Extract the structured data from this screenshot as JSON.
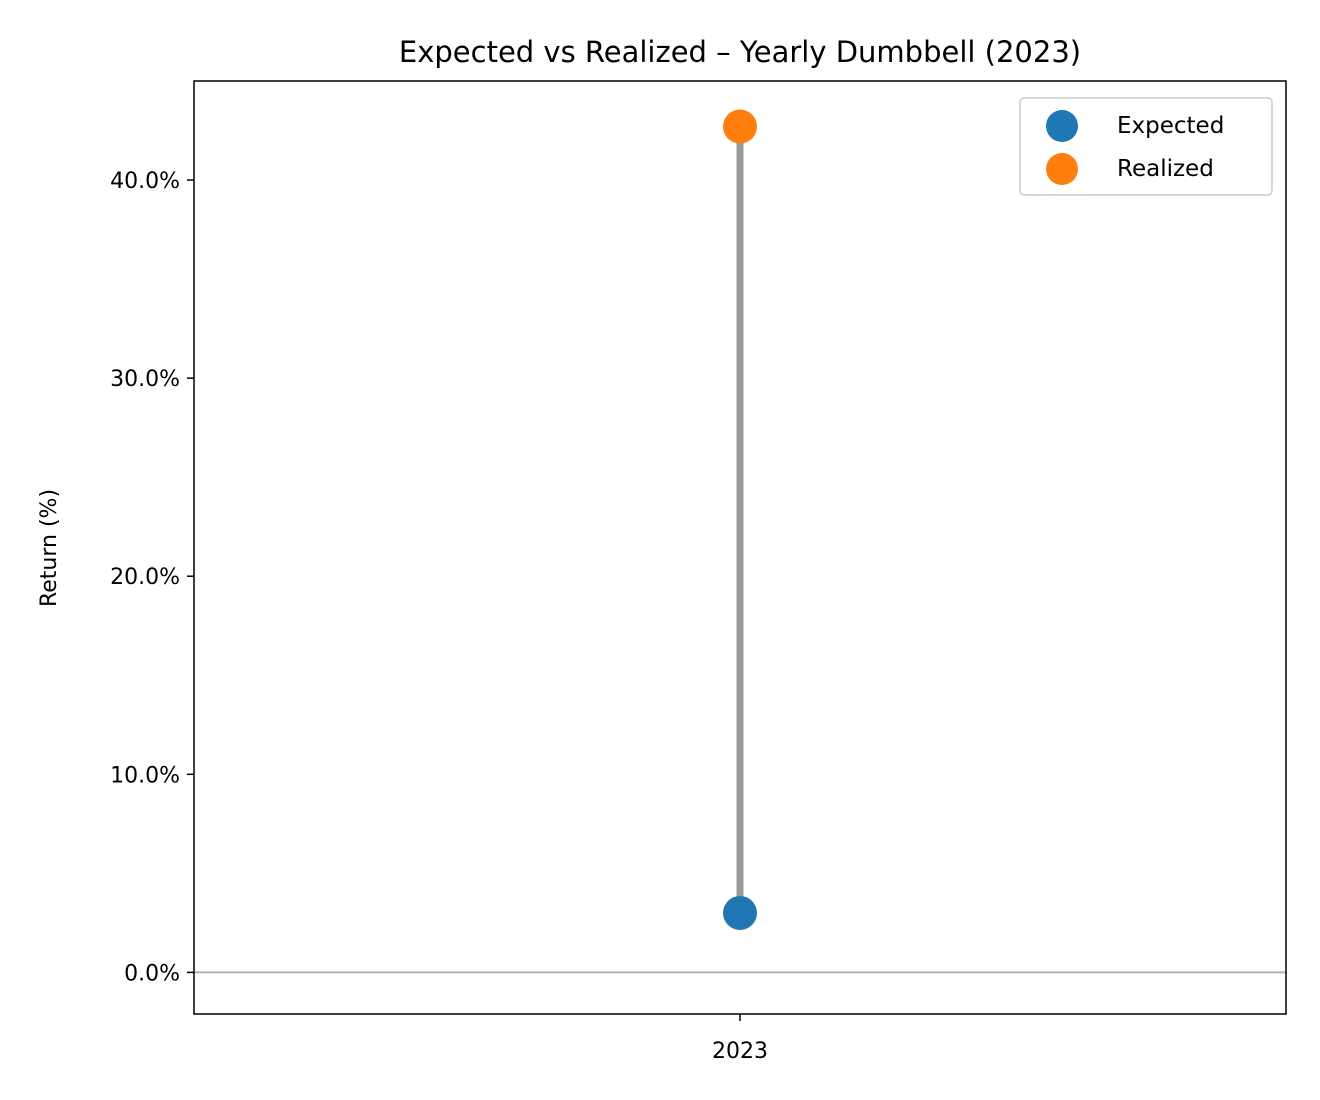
{
  "chart_data": {
    "type": "dumbbell",
    "title": "Expected vs Realized – Yearly Dumbbell (2023)",
    "xlabel": "",
    "ylabel": "Return (%)",
    "categories": [
      "2023"
    ],
    "series": [
      {
        "name": "Expected",
        "values": [
          3.0
        ],
        "color": "#1f77b4"
      },
      {
        "name": "Realized",
        "values": [
          42.7
        ],
        "color": "#ff7f0e"
      }
    ],
    "connector_color": "#999999",
    "reference_line": {
      "y": 0,
      "color": "#b3b3b3"
    },
    "ylim": [
      -2.1,
      45.0
    ],
    "yticks": [
      0,
      10,
      20,
      30,
      40
    ],
    "ytick_labels": [
      "0.0%",
      "10.0%",
      "20.0%",
      "30.0%",
      "40.0%"
    ],
    "grid": false,
    "legend_position": "top-right"
  }
}
